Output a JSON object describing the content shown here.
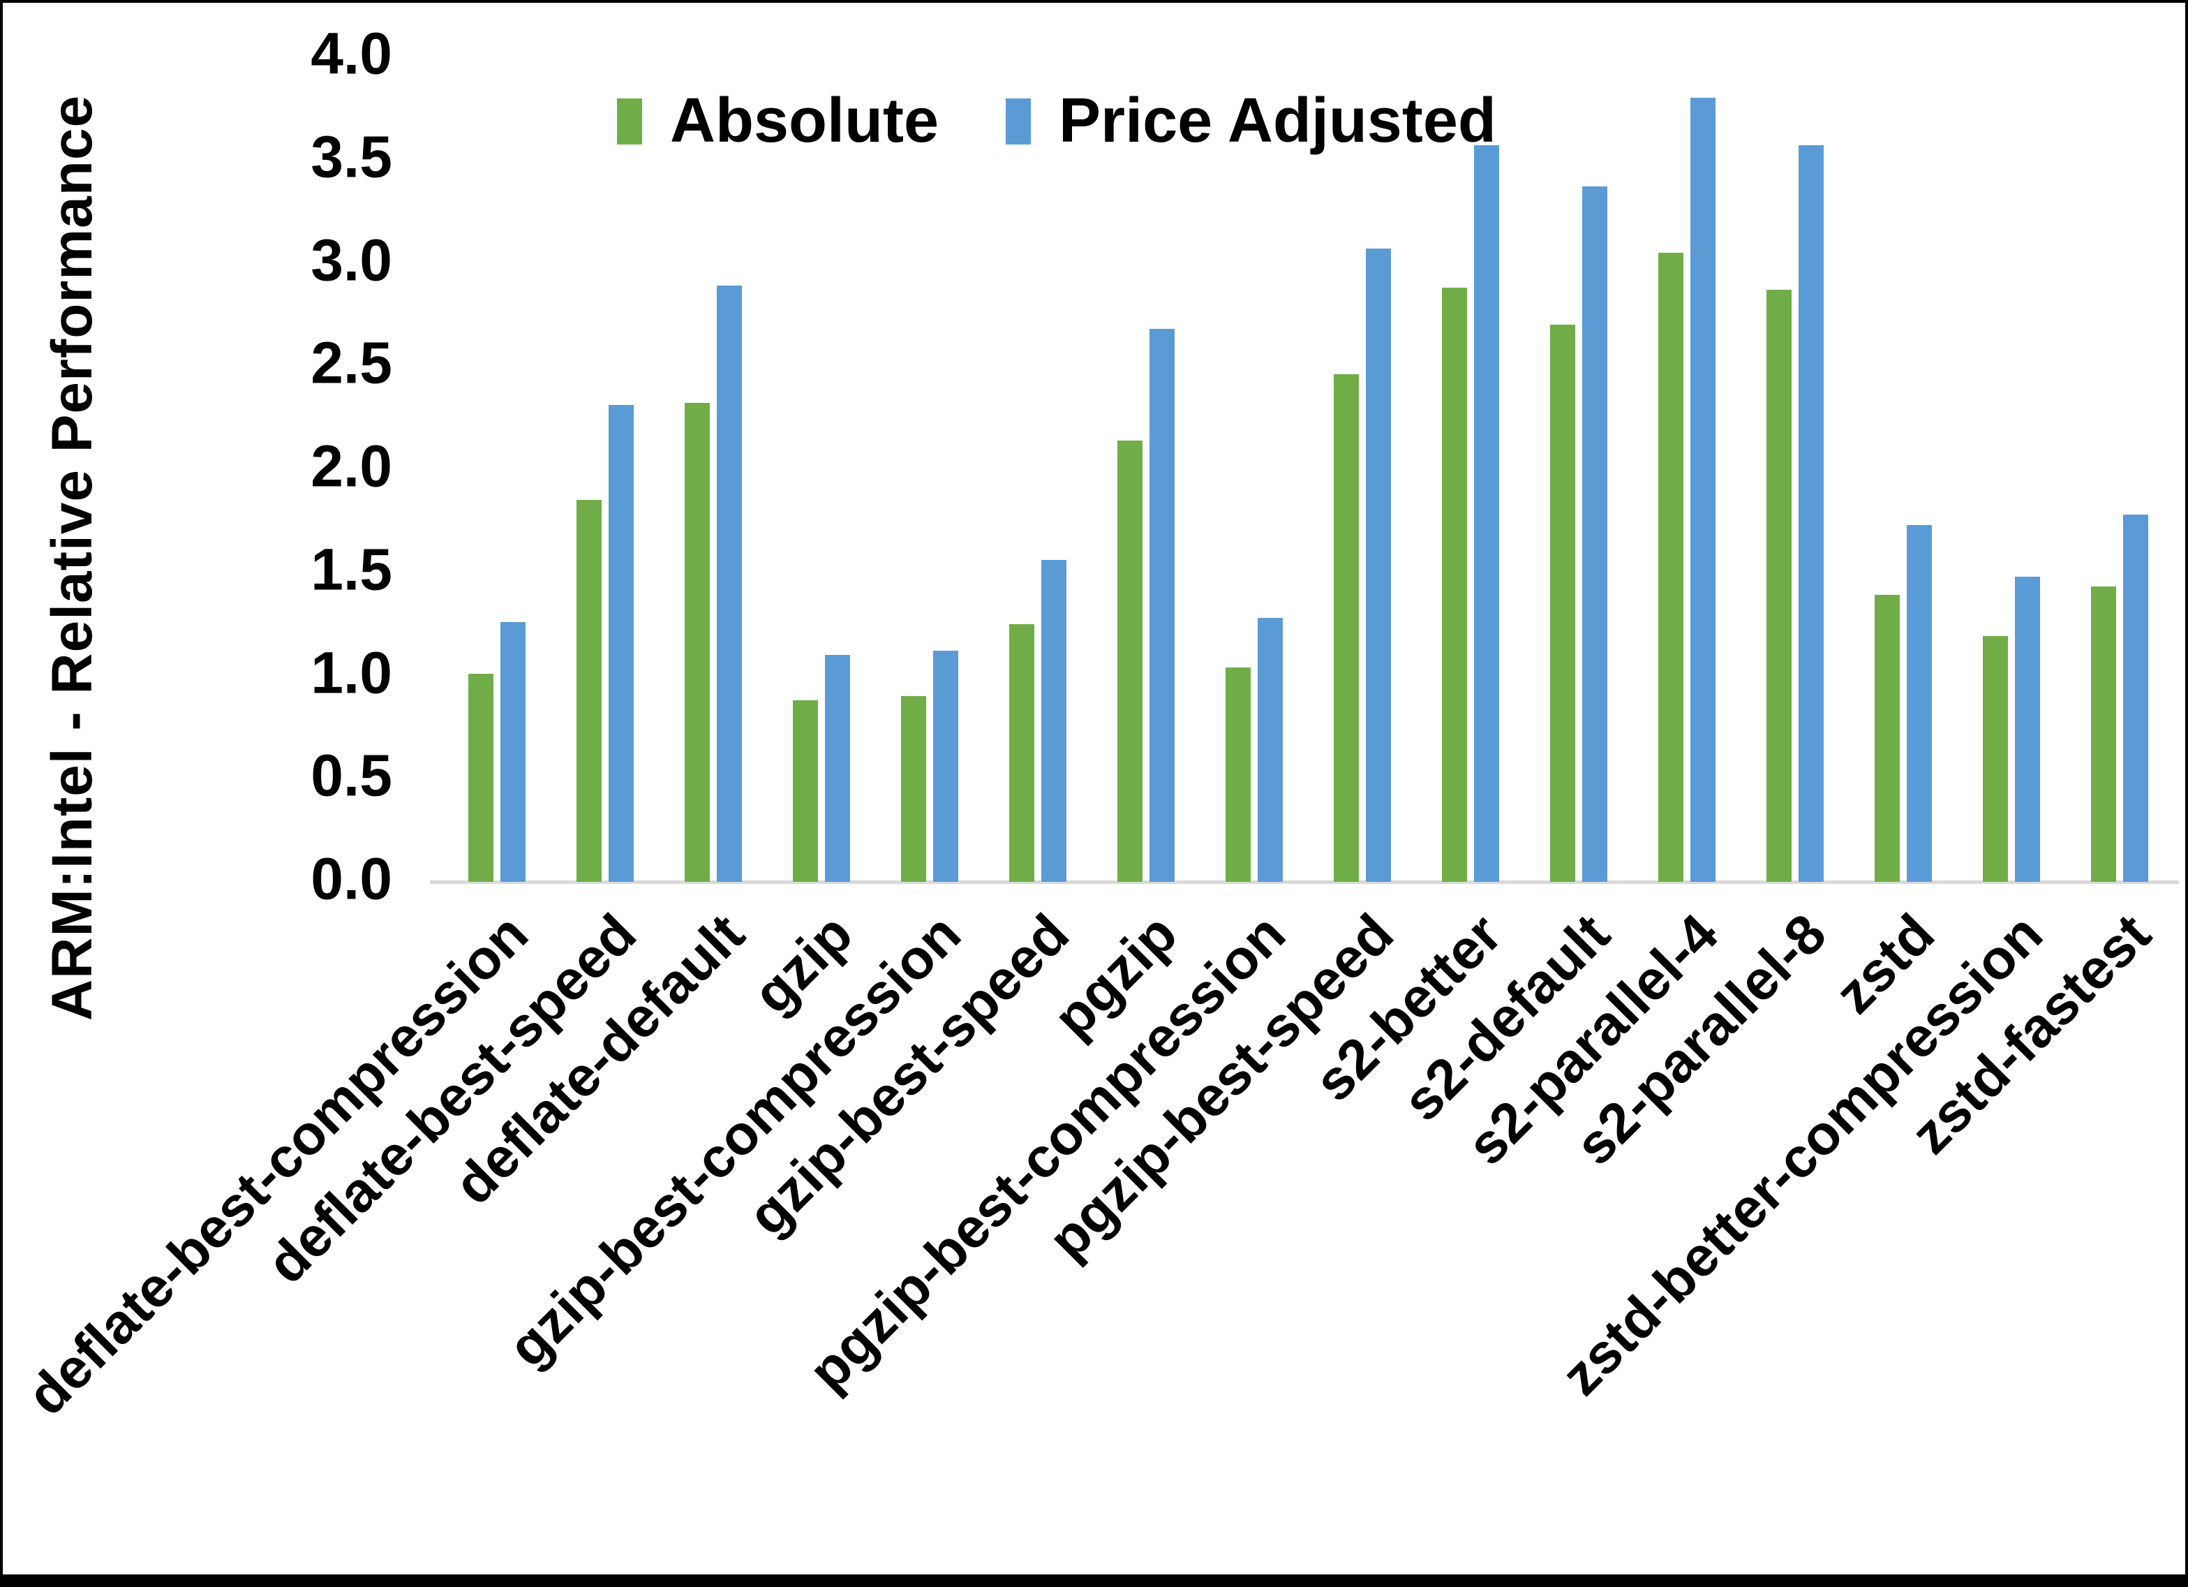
{
  "chart_data": {
    "type": "bar",
    "title": "",
    "xlabel": "",
    "ylabel": "ARM:Intel - Relative Performance",
    "ylim": [
      0,
      4
    ],
    "ytick_step": 0.5,
    "ytick_labels": [
      "0.0",
      "0.5",
      "1.0",
      "1.5",
      "2.0",
      "2.5",
      "3.0",
      "3.5",
      "4.0"
    ],
    "grid": false,
    "legend_position": "top-center-inside",
    "axis_line_color": "#D9D9D9",
    "text_color": "#000000",
    "categories": [
      "deflate-best-compression",
      "deflate-best-speed",
      "deflate-default",
      "gzip",
      "gzip-best-compression",
      "gzip-best-speed",
      "pgzip",
      "pgzip-best-compression",
      "pgzip-best-speed",
      "s2-better",
      "s2-default",
      "s2-parallel-4",
      "s2-parallel-8",
      "zstd",
      "zstd-better-compression",
      "zstd-fastest"
    ],
    "series": [
      {
        "name": "Absolute",
        "color": "#70AD47",
        "values": [
          1.01,
          1.85,
          2.32,
          0.88,
          0.9,
          1.25,
          2.14,
          1.04,
          2.46,
          2.88,
          2.7,
          3.05,
          2.87,
          1.39,
          1.19,
          1.43
        ]
      },
      {
        "name": "Price Adjusted",
        "color": "#5B9BD5",
        "values": [
          1.26,
          2.31,
          2.89,
          1.1,
          1.12,
          1.56,
          2.68,
          1.28,
          3.07,
          3.57,
          3.37,
          3.8,
          3.57,
          1.73,
          1.48,
          1.78
        ]
      }
    ]
  }
}
